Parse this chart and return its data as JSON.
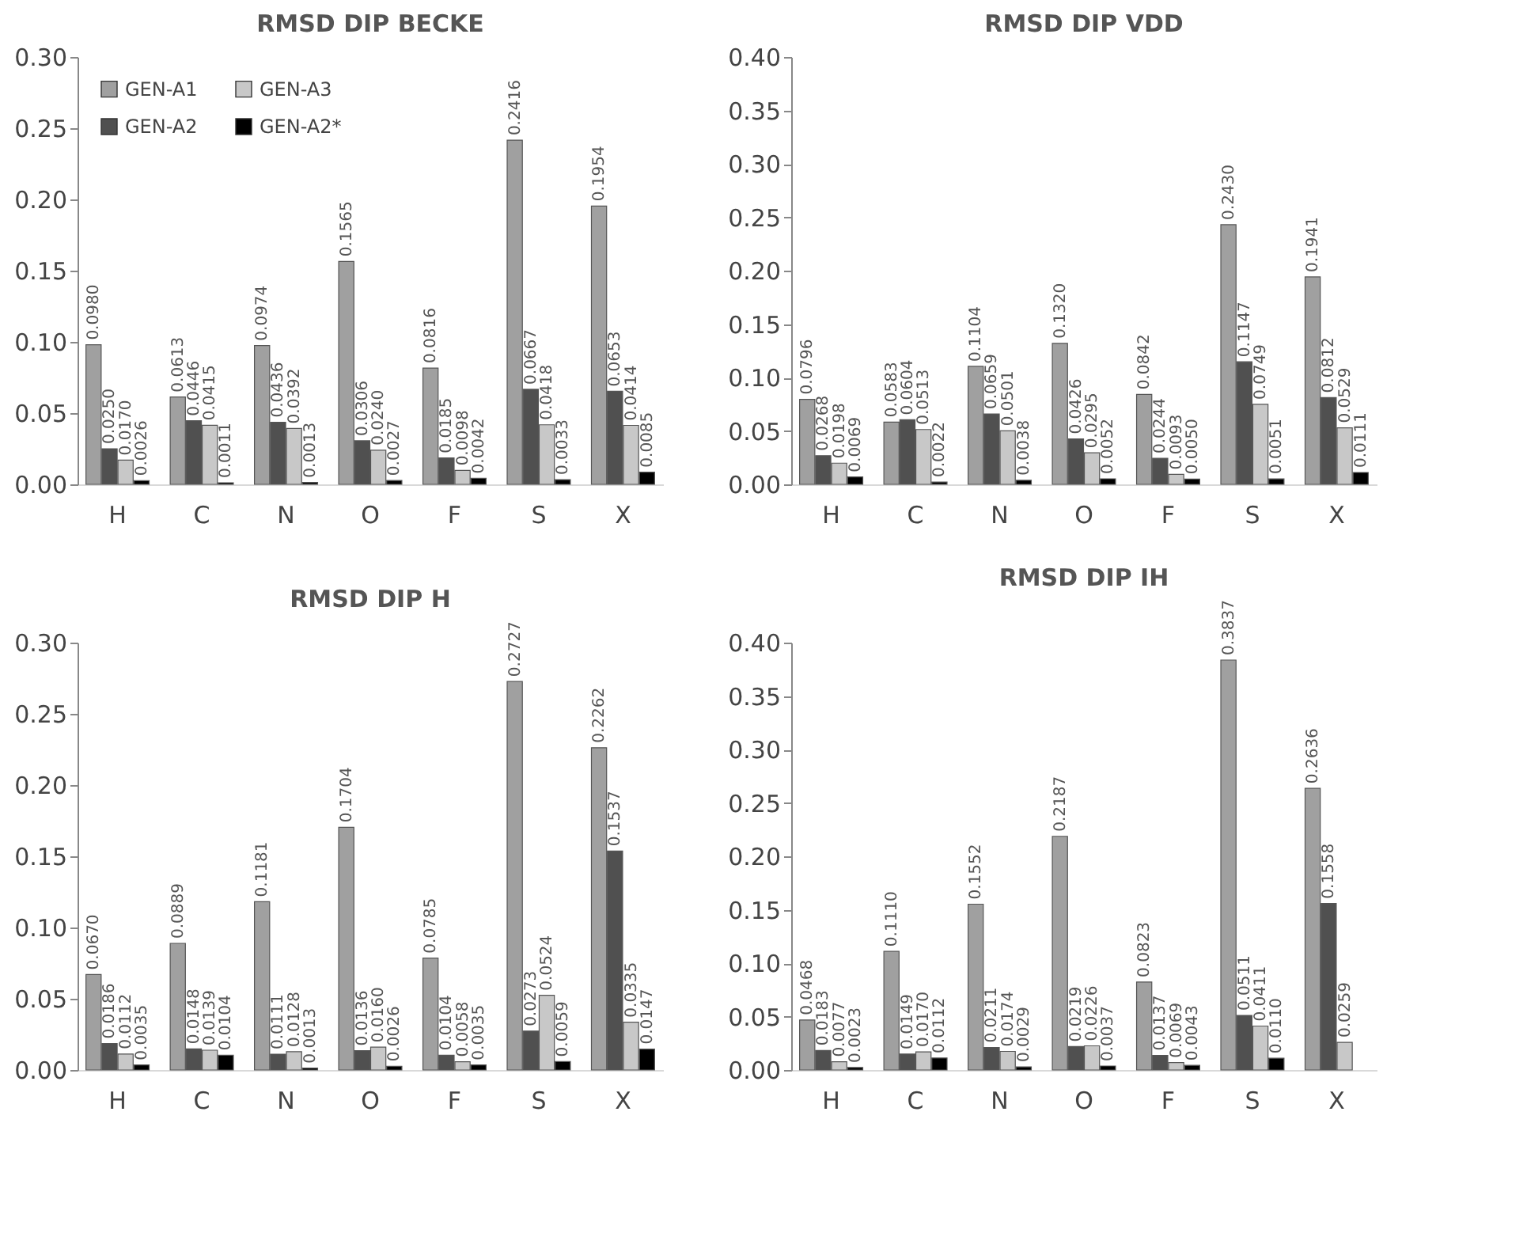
{
  "chart_data": [
    {
      "type": "bar",
      "title": "RMSD DIP BECKE",
      "data_labels": true,
      "categories": [
        "H",
        "C",
        "N",
        "O",
        "F",
        "S",
        "X"
      ],
      "ylim": [
        0,
        0.3
      ],
      "yticks": [
        {
          "value": 0,
          "label": "0.00"
        },
        {
          "value": 0.05,
          "label": "0.05"
        },
        {
          "value": 0.1,
          "label": "0.10"
        },
        {
          "value": 0.15,
          "label": "0.15"
        },
        {
          "value": 0.2,
          "label": "0.20"
        },
        {
          "value": 0.25,
          "label": "0.25"
        },
        {
          "value": 0.3,
          "label": "0.30"
        }
      ],
      "grid": false,
      "legend": "top left",
      "series": [
        {
          "name": "GEN-A1",
          "color": "#a0a0a0",
          "values": [
            0.098,
            0.0613,
            0.0974,
            0.1565,
            0.0816,
            0.2416,
            0.1954
          ],
          "value_labels": [
            "0.0980",
            "0.0613",
            "0.0974",
            "0.1565",
            "0.0816",
            "0.2416",
            "0.1954"
          ]
        },
        {
          "name": "GEN-A2",
          "color": "#505050",
          "values": [
            0.025,
            0.0446,
            0.0436,
            0.0306,
            0.0185,
            0.0667,
            0.0653
          ],
          "value_labels": [
            "0.0250",
            "0.0446",
            "0.0436",
            "0.0306",
            "0.0185",
            "0.0667",
            "0.0653"
          ]
        },
        {
          "name": "GEN-A3",
          "color": "#c8c8c8",
          "values": [
            0.017,
            0.0415,
            0.0392,
            0.024,
            0.0098,
            0.0418,
            0.0414
          ],
          "value_labels": [
            "0.0170",
            "0.0415",
            "0.0392",
            "0.0240",
            "0.0098",
            "0.0418",
            "0.0414"
          ]
        },
        {
          "name": "GEN-A2*",
          "color": "#000000",
          "values": [
            0.0026,
            0.0011,
            0.0013,
            0.0027,
            0.0042,
            0.0033,
            0.0085
          ],
          "value_labels": [
            "0.0026",
            "0.0011",
            "0.0013",
            "0.0027",
            "0.0042",
            "0.0033",
            "0.0085"
          ]
        }
      ]
    },
    {
      "type": "bar",
      "title": "RMSD DIP VDD",
      "data_labels": true,
      "categories": [
        "H",
        "C",
        "N",
        "O",
        "F",
        "S",
        "X"
      ],
      "ylim": [
        0,
        0.4
      ],
      "yticks": [
        {
          "value": 0,
          "label": "0.00"
        },
        {
          "value": 0.05,
          "label": "0.05"
        },
        {
          "value": 0.1,
          "label": "0.10"
        },
        {
          "value": 0.15,
          "label": "0.15"
        },
        {
          "value": 0.2,
          "label": "0.20"
        },
        {
          "value": 0.25,
          "label": "0.25"
        },
        {
          "value": 0.3,
          "label": "0.30"
        },
        {
          "value": 0.35,
          "label": "0.35"
        },
        {
          "value": 0.4,
          "label": "0.40"
        }
      ],
      "grid": false,
      "legend": "top left",
      "series": [
        {
          "name": "GEN-A1",
          "color": "#a0a0a0",
          "values": [
            0.0796,
            0.0583,
            0.1104,
            0.132,
            0.0842,
            0.243,
            0.1941
          ],
          "value_labels": [
            "0.0796",
            "0.0583",
            "0.1104",
            "0.1320",
            "0.0842",
            "0.2430",
            "0.1941"
          ]
        },
        {
          "name": "GEN-A2",
          "color": "#505050",
          "values": [
            0.0268,
            0.0604,
            0.0659,
            0.0426,
            0.0244,
            0.1147,
            0.0812
          ],
          "value_labels": [
            "0.0268",
            "0.0604",
            "0.0659",
            "0.0426",
            "0.0244",
            "0.1147",
            "0.0812"
          ]
        },
        {
          "name": "GEN-A3",
          "color": "#c8c8c8",
          "values": [
            0.0198,
            0.0513,
            0.0501,
            0.0295,
            0.0093,
            0.0749,
            0.0529
          ],
          "value_labels": [
            "0.0198",
            "0.0513",
            "0.0501",
            "0.0295",
            "0.0093",
            "0.0749",
            "0.0529"
          ]
        },
        {
          "name": "GEN-A2*",
          "color": "#000000",
          "values": [
            0.0069,
            0.0022,
            0.0038,
            0.0052,
            0.005,
            0.0051,
            0.0111
          ],
          "value_labels": [
            "0.0069",
            "0.0022",
            "0.0038",
            "0.0052",
            "0.0050",
            "0.0051",
            "0.0111"
          ]
        }
      ]
    },
    {
      "type": "bar",
      "title": "RMSD DIP H",
      "data_labels": true,
      "categories": [
        "H",
        "C",
        "N",
        "O",
        "F",
        "S",
        "X"
      ],
      "ylim": [
        0,
        0.3
      ],
      "yticks": [
        {
          "value": 0,
          "label": "0.00"
        },
        {
          "value": 0.05,
          "label": "0.05"
        },
        {
          "value": 0.1,
          "label": "0.10"
        },
        {
          "value": 0.15,
          "label": "0.15"
        },
        {
          "value": 0.2,
          "label": "0.20"
        },
        {
          "value": 0.25,
          "label": "0.25"
        },
        {
          "value": 0.3,
          "label": "0.30"
        }
      ],
      "grid": false,
      "legend": "top left",
      "series": [
        {
          "name": "GEN-A1",
          "color": "#a0a0a0",
          "values": [
            0.067,
            0.0889,
            0.1181,
            0.1704,
            0.0785,
            0.2727,
            0.2262
          ],
          "value_labels": [
            "0.0670",
            "0.0889",
            "0.1181",
            "0.1704",
            "0.0785",
            "0.2727",
            "0.2262"
          ]
        },
        {
          "name": "GEN-A2",
          "color": "#505050",
          "values": [
            0.0186,
            0.0148,
            0.0111,
            0.0136,
            0.0104,
            0.0273,
            0.1537
          ],
          "value_labels": [
            "0.0186",
            "0.0148",
            "0.0111",
            "0.0136",
            "0.0104",
            "0.0273",
            "0.1537"
          ]
        },
        {
          "name": "GEN-A3",
          "color": "#c8c8c8",
          "values": [
            0.0112,
            0.0139,
            0.0128,
            0.016,
            0.0058,
            0.0524,
            0.0335
          ],
          "value_labels": [
            "0.0112",
            "0.0139",
            "0.0128",
            "0.0160",
            "0.0058",
            "0.0524",
            "0.0335"
          ]
        },
        {
          "name": "GEN-A2*",
          "color": "#000000",
          "values": [
            0.0035,
            0.0104,
            0.0013,
            0.0026,
            0.0035,
            0.0059,
            0.0147
          ],
          "value_labels": [
            "0.0035",
            "0.0104",
            "0.0013",
            "0.0026",
            "0.0035",
            "0.0059",
            "0.0147"
          ]
        }
      ]
    },
    {
      "type": "bar",
      "title": "RMSD DIP IH",
      "data_labels": true,
      "categories": [
        "H",
        "C",
        "N",
        "O",
        "F",
        "S",
        "X"
      ],
      "ylim": [
        0,
        0.4
      ],
      "yticks": [
        {
          "value": 0,
          "label": "0.00"
        },
        {
          "value": 0.05,
          "label": "0.05"
        },
        {
          "value": 0.1,
          "label": "0.10"
        },
        {
          "value": 0.15,
          "label": "0.15"
        },
        {
          "value": 0.2,
          "label": "0.20"
        },
        {
          "value": 0.25,
          "label": "0.25"
        },
        {
          "value": 0.3,
          "label": "0.30"
        },
        {
          "value": 0.35,
          "label": "0.35"
        },
        {
          "value": 0.4,
          "label": "0.40"
        }
      ],
      "grid": false,
      "legend": "top left",
      "series": [
        {
          "name": "GEN-A1",
          "color": "#a0a0a0",
          "values": [
            0.0468,
            0.111,
            0.1552,
            0.2187,
            0.0823,
            0.3837,
            0.2636
          ],
          "value_labels": [
            "0.0468",
            "0.1110",
            "0.1552",
            "0.2187",
            "0.0823",
            "0.3837",
            "0.2636"
          ]
        },
        {
          "name": "GEN-A2",
          "color": "#505050",
          "values": [
            0.0183,
            0.0149,
            0.0211,
            0.0219,
            0.0137,
            0.0511,
            0.1558
          ],
          "value_labels": [
            "0.0183",
            "0.0149",
            "0.0211",
            "0.0219",
            "0.0137",
            "0.0511",
            "0.1558"
          ]
        },
        {
          "name": "GEN-A3",
          "color": "#c8c8c8",
          "values": [
            0.0077,
            0.017,
            0.0174,
            0.0226,
            0.0069,
            0.0411,
            0.0259
          ],
          "value_labels": [
            "0.0077",
            "0.0170",
            "0.0174",
            "0.0226",
            "0.0069",
            "0.0411",
            "0.0259"
          ]
        },
        {
          "name": "GEN-A2*",
          "color": "#000000",
          "values": [
            0.0023,
            0.0112,
            0.0029,
            0.0037,
            0.0043,
            0.011,
            null
          ],
          "value_labels": [
            "0.0023",
            "0.0112",
            "0.0029",
            "0.0037",
            "0.0043",
            "0.0110",
            null
          ]
        }
      ]
    }
  ]
}
